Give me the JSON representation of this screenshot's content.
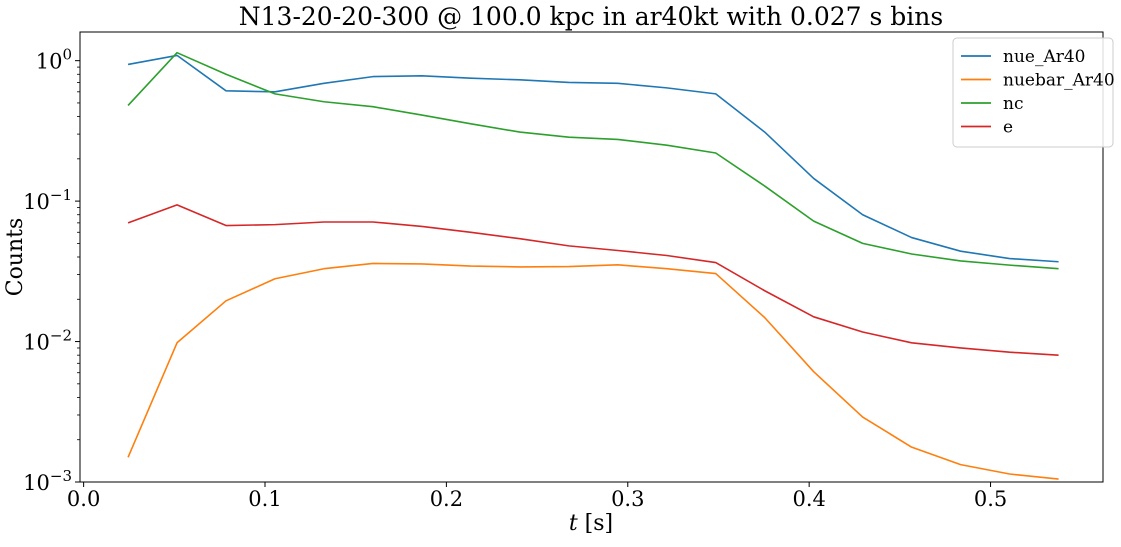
{
  "chart_data": {
    "type": "line",
    "title": "N13-20-20-300 @ 100.0 kpc in ar40kt with 0.027 s bins",
    "xlabel": "t [s]",
    "xlabel_italic": "t",
    "xlabel_unit": " [s]",
    "ylabel": "Counts",
    "y_scale": "log",
    "xlim": [
      -0.002,
      0.562
    ],
    "ylim": [
      0.001,
      1.6
    ],
    "x_ticks": [
      0.0,
      0.1,
      0.2,
      0.3,
      0.4,
      0.5
    ],
    "x_tick_labels": [
      "0.0",
      "0.1",
      "0.2",
      "0.3",
      "0.4",
      "0.5"
    ],
    "y_ticks": [
      0.001,
      0.01,
      0.1,
      1
    ],
    "y_tick_bases": [
      "10",
      "10",
      "10",
      "10"
    ],
    "y_tick_exponents": [
      "−3",
      "−2",
      "−1",
      "0"
    ],
    "grid": false,
    "legend_position": "top-right",
    "x": [
      0.0245,
      0.0515,
      0.0785,
      0.1055,
      0.1325,
      0.1595,
      0.1865,
      0.2135,
      0.2405,
      0.2675,
      0.2945,
      0.3215,
      0.3485,
      0.3755,
      0.4025,
      0.4295,
      0.4565,
      0.4835,
      0.5105,
      0.5375
    ],
    "series": [
      {
        "name": "nue_Ar40",
        "color": "#1f77b4",
        "values": [
          0.94,
          1.09,
          0.61,
          0.6,
          0.69,
          0.77,
          0.78,
          0.75,
          0.73,
          0.7,
          0.69,
          0.64,
          0.58,
          0.31,
          0.145,
          0.08,
          0.055,
          0.044,
          0.039,
          0.037
        ]
      },
      {
        "name": "nuebar_Ar40",
        "color": "#ff7f0e",
        "values": [
          0.0015,
          0.0098,
          0.0195,
          0.028,
          0.033,
          0.036,
          0.0357,
          0.0345,
          0.034,
          0.0342,
          0.0352,
          0.033,
          0.0305,
          0.0148,
          0.0061,
          0.0029,
          0.00177,
          0.00133,
          0.00114,
          0.00105
        ]
      },
      {
        "name": "nc",
        "color": "#2ca02c",
        "values": [
          0.48,
          1.14,
          0.8,
          0.58,
          0.51,
          0.47,
          0.41,
          0.355,
          0.31,
          0.285,
          0.275,
          0.25,
          0.22,
          0.128,
          0.072,
          0.05,
          0.042,
          0.0375,
          0.035,
          0.033
        ]
      },
      {
        "name": "e",
        "color": "#d62728",
        "values": [
          0.07,
          0.094,
          0.067,
          0.068,
          0.071,
          0.071,
          0.066,
          0.06,
          0.054,
          0.048,
          0.0445,
          0.041,
          0.0365,
          0.023,
          0.015,
          0.0117,
          0.0098,
          0.009,
          0.0084,
          0.008
        ]
      }
    ]
  }
}
